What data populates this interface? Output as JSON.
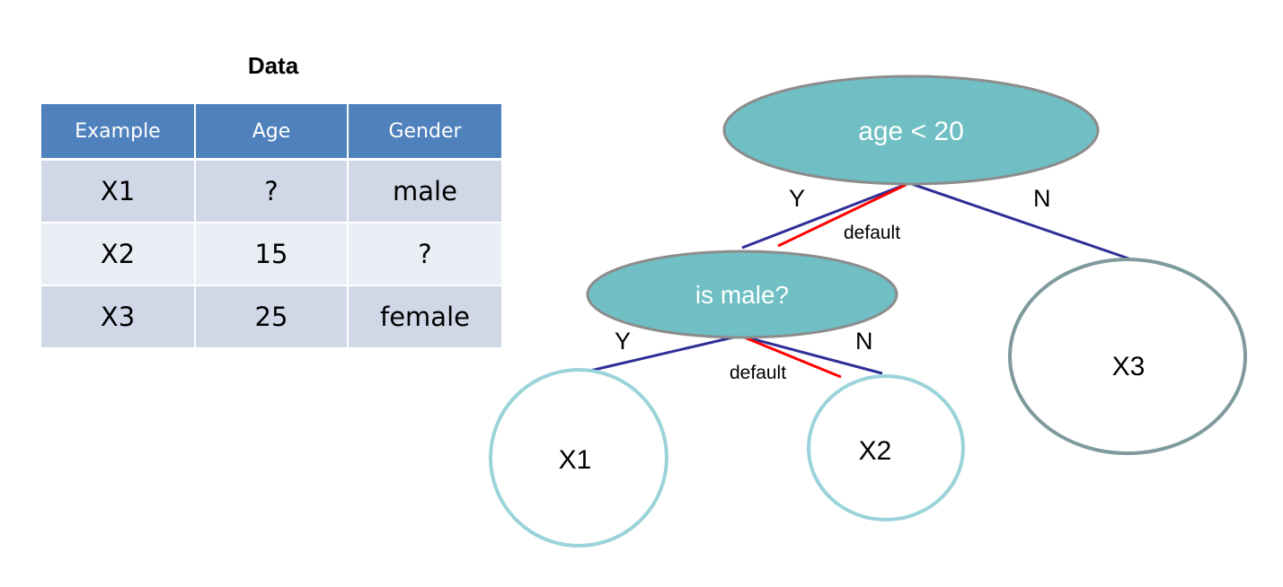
{
  "table": {
    "title": "Data",
    "headers": [
      "Example",
      "Age",
      "Gender"
    ],
    "rows": [
      [
        "X1",
        "?",
        "male"
      ],
      [
        "X2",
        "15",
        "?"
      ],
      [
        "X3",
        "25",
        "female"
      ]
    ],
    "colors": {
      "header_bg": "#4f81bd",
      "row_dark": "#d0d8e8",
      "row_light": "#e9edf4"
    }
  },
  "tree": {
    "root": {
      "label": "age < 20",
      "yes_label": "Y",
      "no_label": "N",
      "default_label": "default"
    },
    "inner": {
      "label": "is male?",
      "yes_label": "Y",
      "no_label": "N",
      "default_label": "default"
    },
    "leaves": {
      "x1": "X1",
      "x2": "X2",
      "x3": "X3"
    },
    "colors": {
      "decision_fill": "#6fbfc4",
      "decision_stroke": "#8c8c8c",
      "leaf_stroke": "#9ad3d9",
      "leaf_x3_stroke": "#7f9a9c",
      "edge": "#2e2e96",
      "default_edge": "#ff0000"
    }
  }
}
